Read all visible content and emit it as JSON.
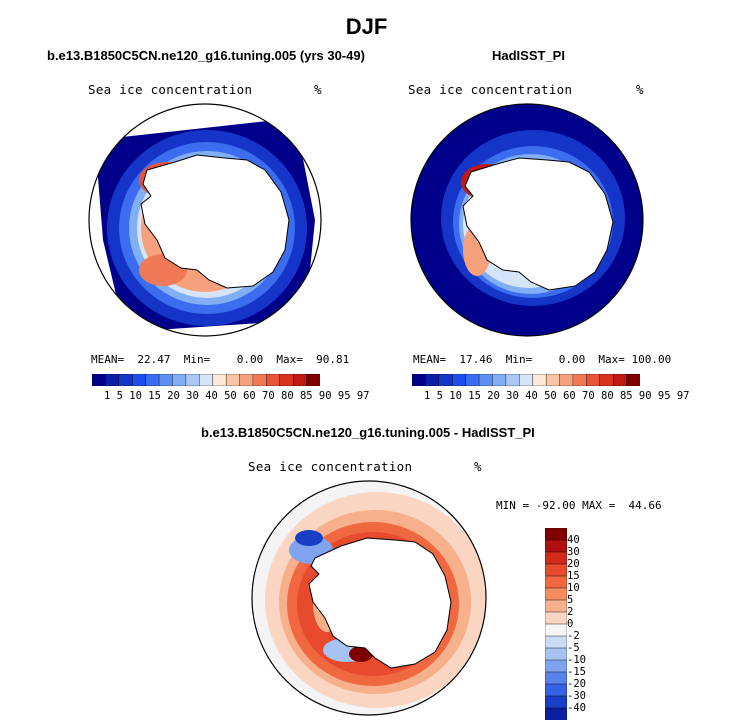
{
  "figure": {
    "title": "DJF"
  },
  "panels": [
    {
      "title": "b.e13.B1850C5CN.ne120_g16.tuning.005 (yrs 30-49)",
      "field_label": "Sea ice concentration",
      "units": "%",
      "stats": "MEAN=  22.47  Min=    0.00  Max=  90.81"
    },
    {
      "title": "HadISST_PI",
      "field_label": "Sea ice concentration",
      "units": "%",
      "stats": "MEAN=  17.46  Min=    0.00  Max= 100.00"
    },
    {
      "title": "b.e13.B1850C5CN.ne120_g16.tuning.005 - HadISST_PI",
      "field_label": "Sea ice concentration",
      "units": "%",
      "stats": "MIN = -92.00 MAX =  44.66"
    }
  ],
  "colorbar_abs": {
    "ticks_text": "1  5 10 15 20 30 40 50 60 70 80 85 90 95 97",
    "colors": [
      "#00008b",
      "#0a1ea8",
      "#1535c8",
      "#1f4fe6",
      "#3c6cf0",
      "#5d8ef2",
      "#82aef4",
      "#aac8f5",
      "#d6e4f8",
      "#fde7d7",
      "#f9c4a8",
      "#f7a07c",
      "#f07a55",
      "#e8553a",
      "#d9331f",
      "#c01a12",
      "#800000"
    ]
  },
  "colorbar_diff": {
    "labels": [
      "40",
      "30",
      "20",
      "15",
      "10",
      "5",
      "2",
      "0",
      "-2",
      "-5",
      "-10",
      "-15",
      "-20",
      "-30",
      "-40"
    ],
    "colors": [
      "#800000",
      "#b01010",
      "#d22a1a",
      "#e84a2d",
      "#f0683f",
      "#f48c5e",
      "#f7b08c",
      "#fad6c2",
      "#f4f4f4",
      "#c9dcf6",
      "#a6c3f3",
      "#7fa3ef",
      "#5a82eb",
      "#3662e3",
      "#1a3fc7",
      "#0a1ea0"
    ]
  }
}
